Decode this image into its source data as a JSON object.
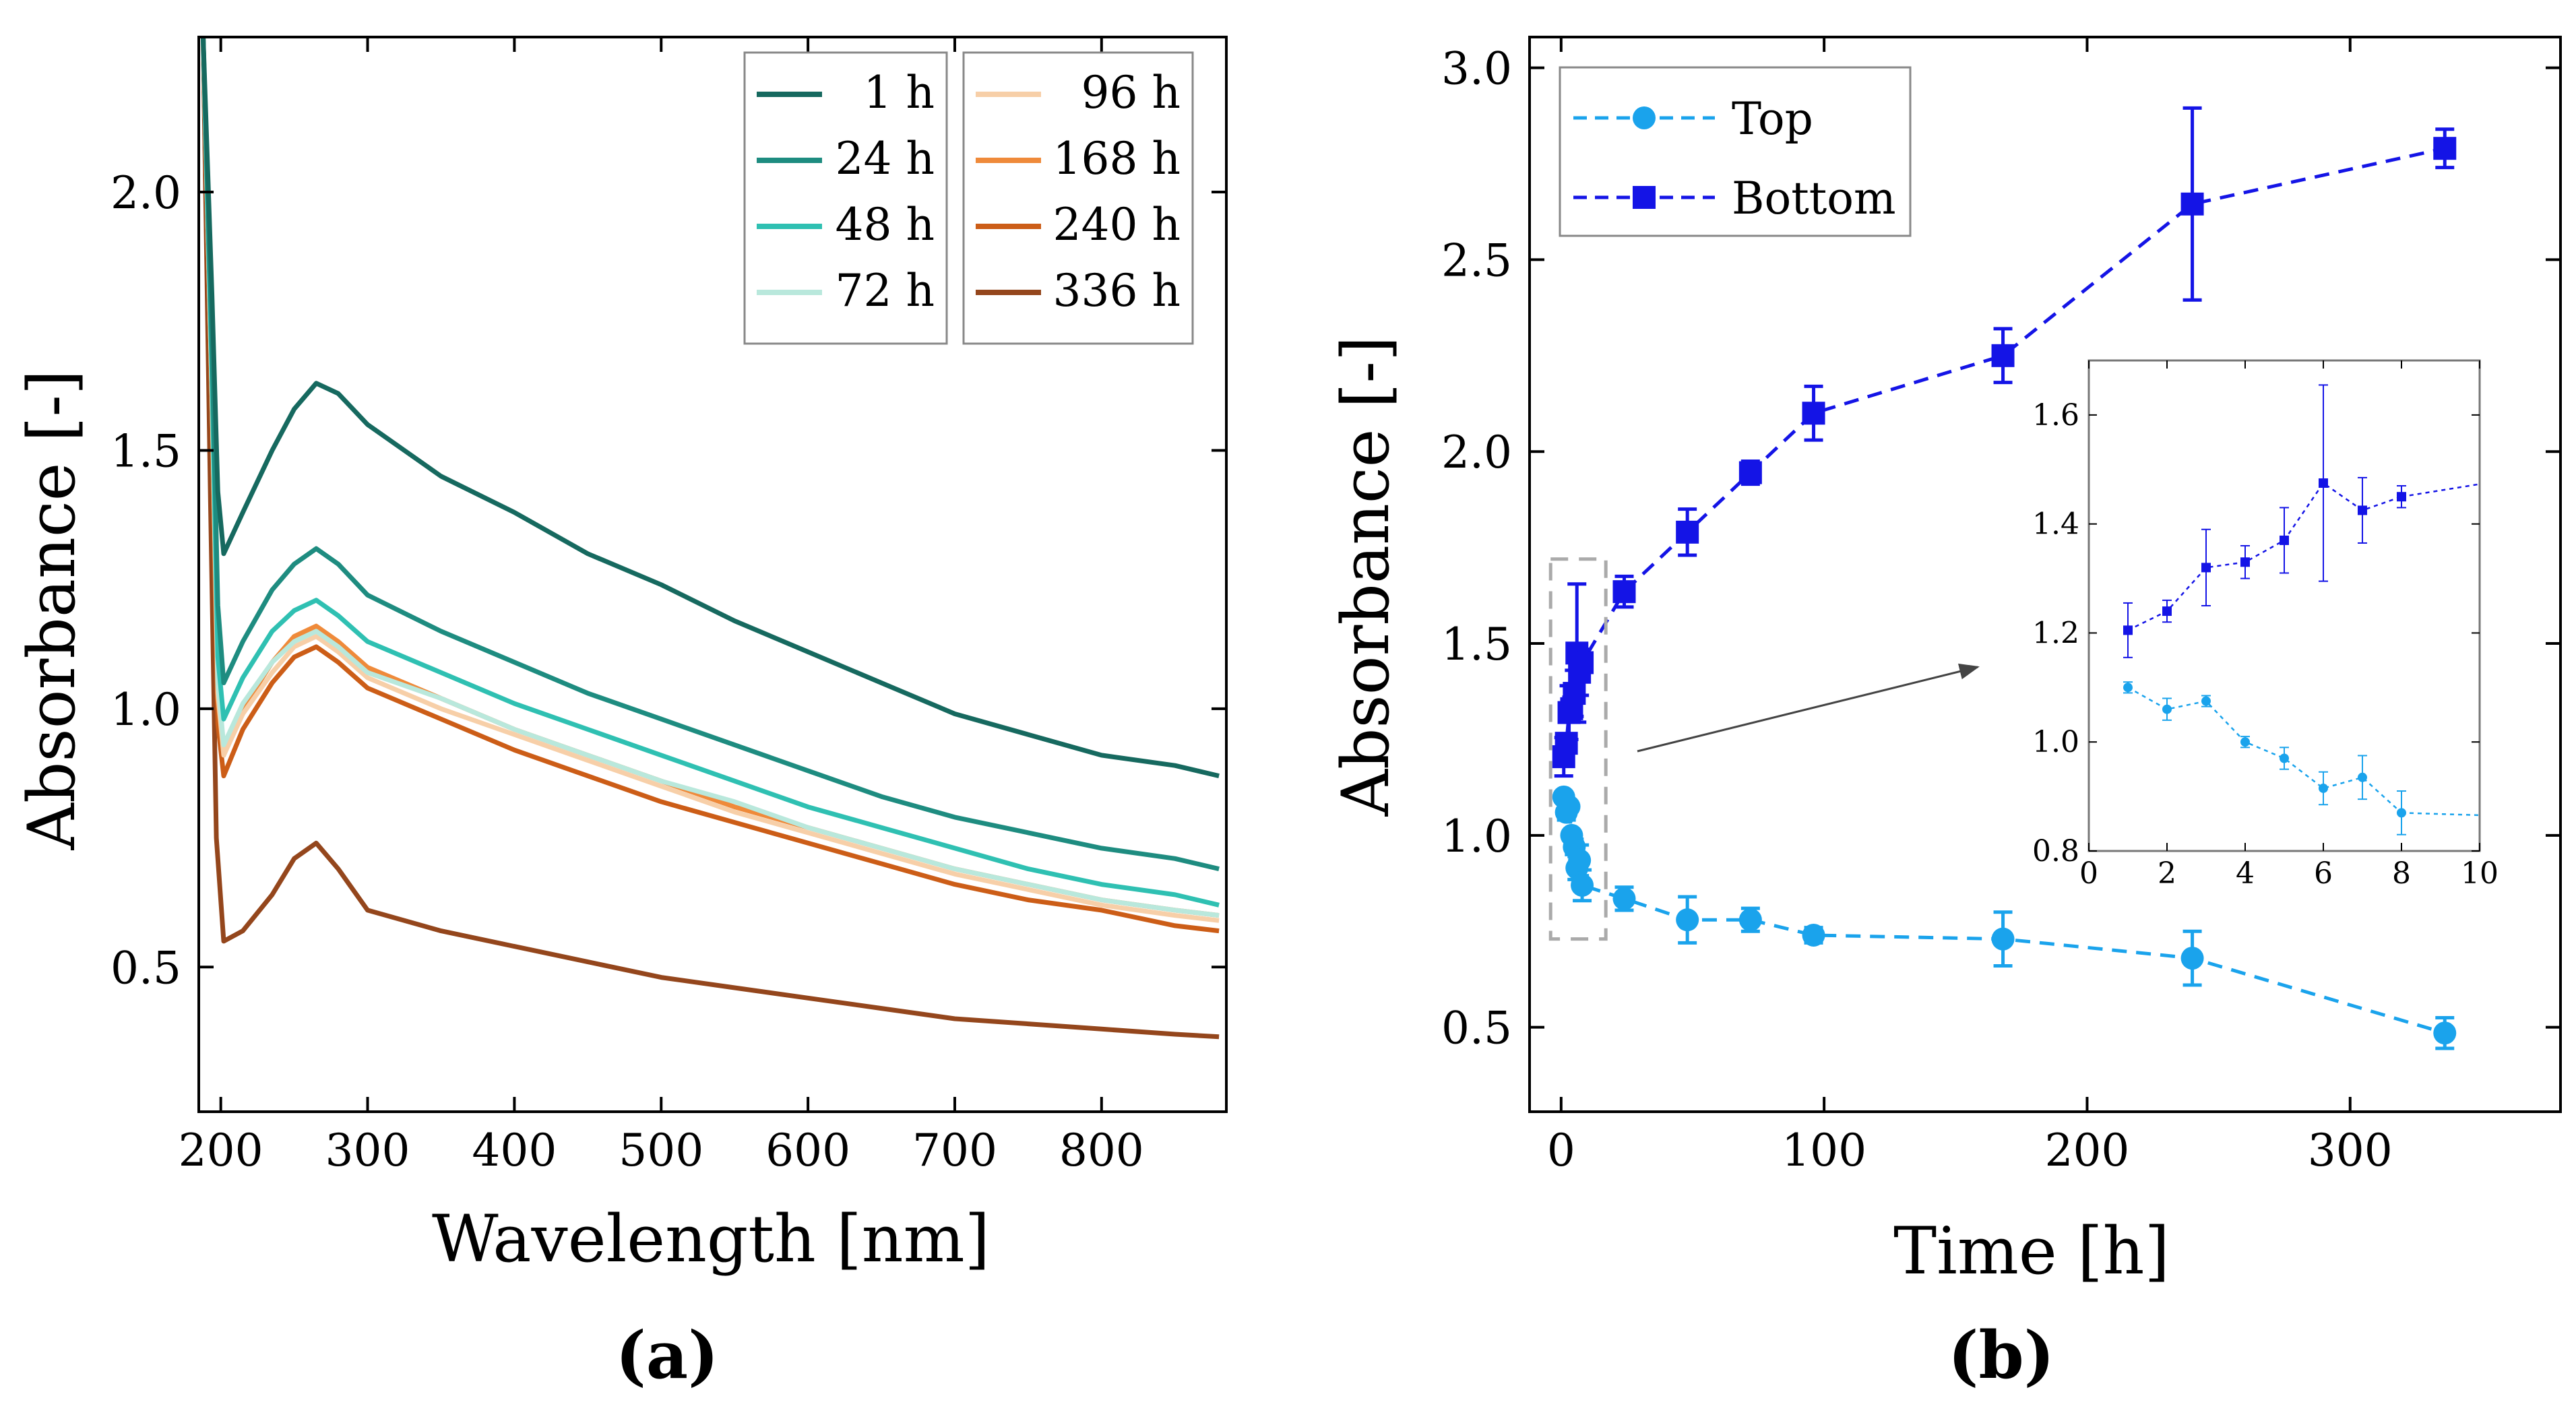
{
  "chart_data": [
    {
      "panel": "(a)",
      "type": "line",
      "xlabel": "Wavelength [nm]",
      "ylabel": "Absorbance [-]",
      "xlim": [
        185,
        885
      ],
      "ylim": [
        0.22,
        2.3
      ],
      "xticks": [
        200,
        300,
        400,
        500,
        600,
        700,
        800
      ],
      "yticks": [
        0.5,
        1.0,
        1.5,
        2.0
      ],
      "ytick_labels": [
        "0.5",
        "1.0",
        "1.5",
        "2.0"
      ],
      "legend_position": "top-right",
      "series": [
        {
          "name": "1 h",
          "color": "#16695f",
          "values": [
            [
              188,
              2.3
            ],
            [
              194,
              1.8
            ],
            [
              198,
              1.42
            ],
            [
              202,
              1.3
            ],
            [
              215,
              1.38
            ],
            [
              235,
              1.5
            ],
            [
              250,
              1.58
            ],
            [
              265,
              1.63
            ],
            [
              280,
              1.61
            ],
            [
              300,
              1.55
            ],
            [
              350,
              1.45
            ],
            [
              400,
              1.38
            ],
            [
              450,
              1.3
            ],
            [
              500,
              1.24
            ],
            [
              550,
              1.17
            ],
            [
              600,
              1.11
            ],
            [
              650,
              1.05
            ],
            [
              700,
              0.99
            ],
            [
              750,
              0.95
            ],
            [
              800,
              0.91
            ],
            [
              850,
              0.89
            ],
            [
              880,
              0.87
            ]
          ]
        },
        {
          "name": "24 h",
          "color": "#1e8c80",
          "values": [
            [
              188,
              2.3
            ],
            [
              194,
              1.7
            ],
            [
              198,
              1.2
            ],
            [
              202,
              1.05
            ],
            [
              215,
              1.13
            ],
            [
              235,
              1.23
            ],
            [
              250,
              1.28
            ],
            [
              265,
              1.31
            ],
            [
              280,
              1.28
            ],
            [
              300,
              1.22
            ],
            [
              350,
              1.15
            ],
            [
              400,
              1.09
            ],
            [
              450,
              1.03
            ],
            [
              500,
              0.98
            ],
            [
              550,
              0.93
            ],
            [
              600,
              0.88
            ],
            [
              650,
              0.83
            ],
            [
              700,
              0.79
            ],
            [
              750,
              0.76
            ],
            [
              800,
              0.73
            ],
            [
              850,
              0.71
            ],
            [
              880,
              0.69
            ]
          ]
        },
        {
          "name": "48 h",
          "color": "#2fc0b2",
          "values": [
            [
              188,
              2.3
            ],
            [
              194,
              1.65
            ],
            [
              198,
              1.1
            ],
            [
              202,
              0.98
            ],
            [
              215,
              1.06
            ],
            [
              235,
              1.15
            ],
            [
              250,
              1.19
            ],
            [
              265,
              1.21
            ],
            [
              280,
              1.18
            ],
            [
              300,
              1.13
            ],
            [
              350,
              1.07
            ],
            [
              400,
              1.01
            ],
            [
              450,
              0.96
            ],
            [
              500,
              0.91
            ],
            [
              550,
              0.86
            ],
            [
              600,
              0.81
            ],
            [
              650,
              0.77
            ],
            [
              700,
              0.73
            ],
            [
              750,
              0.69
            ],
            [
              800,
              0.66
            ],
            [
              850,
              0.64
            ],
            [
              880,
              0.62
            ]
          ]
        },
        {
          "name": "72 h",
          "color": "#b9e8dc",
          "values": [
            [
              188,
              2.3
            ],
            [
              194,
              1.6
            ],
            [
              198,
              1.05
            ],
            [
              202,
              0.93
            ],
            [
              215,
              1.01
            ],
            [
              235,
              1.09
            ],
            [
              250,
              1.13
            ],
            [
              265,
              1.15
            ],
            [
              280,
              1.12
            ],
            [
              300,
              1.07
            ],
            [
              350,
              1.02
            ],
            [
              400,
              0.96
            ],
            [
              450,
              0.91
            ],
            [
              500,
              0.86
            ],
            [
              550,
              0.82
            ],
            [
              600,
              0.77
            ],
            [
              650,
              0.73
            ],
            [
              700,
              0.69
            ],
            [
              750,
              0.66
            ],
            [
              800,
              0.63
            ],
            [
              850,
              0.61
            ],
            [
              880,
              0.6
            ]
          ]
        },
        {
          "name": "96 h",
          "color": "#f7cfa8",
          "values": [
            [
              188,
              2.3
            ],
            [
              194,
              1.6
            ],
            [
              198,
              1.03
            ],
            [
              202,
              0.91
            ],
            [
              215,
              0.99
            ],
            [
              235,
              1.07
            ],
            [
              250,
              1.12
            ],
            [
              265,
              1.14
            ],
            [
              280,
              1.11
            ],
            [
              300,
              1.06
            ],
            [
              350,
              1.0
            ],
            [
              400,
              0.95
            ],
            [
              450,
              0.9
            ],
            [
              500,
              0.85
            ],
            [
              550,
              0.8
            ],
            [
              600,
              0.76
            ],
            [
              650,
              0.72
            ],
            [
              700,
              0.68
            ],
            [
              750,
              0.65
            ],
            [
              800,
              0.62
            ],
            [
              850,
              0.6
            ],
            [
              880,
              0.59
            ]
          ]
        },
        {
          "name": "168 h",
          "color": "#ef8a3a",
          "values": [
            [
              188,
              2.3
            ],
            [
              194,
              1.6
            ],
            [
              198,
              1.02
            ],
            [
              202,
              0.91
            ],
            [
              215,
              1.0
            ],
            [
              235,
              1.09
            ],
            [
              250,
              1.14
            ],
            [
              265,
              1.16
            ],
            [
              280,
              1.13
            ],
            [
              300,
              1.08
            ],
            [
              350,
              1.02
            ],
            [
              400,
              0.96
            ],
            [
              450,
              0.91
            ],
            [
              500,
              0.86
            ],
            [
              550,
              0.81
            ],
            [
              600,
              0.77
            ],
            [
              650,
              0.73
            ],
            [
              700,
              0.69
            ],
            [
              750,
              0.66
            ],
            [
              800,
              0.63
            ],
            [
              850,
              0.61
            ],
            [
              880,
              0.6
            ]
          ]
        },
        {
          "name": "240 h",
          "color": "#cc5d17",
          "values": [
            [
              188,
              2.3
            ],
            [
              194,
              1.55
            ],
            [
              198,
              0.97
            ],
            [
              202,
              0.87
            ],
            [
              215,
              0.96
            ],
            [
              235,
              1.05
            ],
            [
              250,
              1.1
            ],
            [
              265,
              1.12
            ],
            [
              280,
              1.09
            ],
            [
              300,
              1.04
            ],
            [
              350,
              0.98
            ],
            [
              400,
              0.92
            ],
            [
              450,
              0.87
            ],
            [
              500,
              0.82
            ],
            [
              550,
              0.78
            ],
            [
              600,
              0.74
            ],
            [
              650,
              0.7
            ],
            [
              700,
              0.66
            ],
            [
              750,
              0.63
            ],
            [
              800,
              0.61
            ],
            [
              850,
              0.58
            ],
            [
              880,
              0.57
            ]
          ]
        },
        {
          "name": "336 h",
          "color": "#94461c",
          "values": [
            [
              188,
              2.3
            ],
            [
              193,
              1.4
            ],
            [
              197,
              0.75
            ],
            [
              202,
              0.55
            ],
            [
              215,
              0.57
            ],
            [
              235,
              0.64
            ],
            [
              250,
              0.71
            ],
            [
              265,
              0.74
            ],
            [
              280,
              0.69
            ],
            [
              300,
              0.61
            ],
            [
              350,
              0.57
            ],
            [
              400,
              0.54
            ],
            [
              450,
              0.51
            ],
            [
              500,
              0.48
            ],
            [
              550,
              0.46
            ],
            [
              600,
              0.44
            ],
            [
              650,
              0.42
            ],
            [
              700,
              0.4
            ],
            [
              750,
              0.39
            ],
            [
              800,
              0.38
            ],
            [
              850,
              0.37
            ],
            [
              880,
              0.365
            ]
          ]
        }
      ]
    },
    {
      "panel": "(b)",
      "type": "scatter",
      "xlabel": "Time [h]",
      "ylabel": "Absorbance [-]",
      "xlim": [
        -12,
        380
      ],
      "ylim": [
        0.28,
        3.08
      ],
      "xticks": [
        0,
        100,
        200,
        300
      ],
      "yticks": [
        0.5,
        1.0,
        1.5,
        2.0,
        2.5,
        3.0
      ],
      "ytick_labels": [
        "0.5",
        "1.0",
        "1.5",
        "2.0",
        "2.5",
        "3.0"
      ],
      "legend_position": "top-left",
      "series": [
        {
          "name": "Top",
          "color": "#1aa3ec",
          "marker": "circle",
          "x": [
            1,
            2,
            3,
            4,
            5,
            6,
            7,
            8,
            24,
            48,
            72,
            96,
            168,
            240,
            336
          ],
          "values": [
            1.1,
            1.06,
            1.075,
            1.0,
            0.97,
            0.915,
            0.935,
            0.87,
            0.835,
            0.78,
            0.78,
            0.74,
            0.73,
            0.68,
            0.485
          ],
          "errors": [
            0.01,
            0.02,
            0.01,
            0.01,
            0.02,
            0.03,
            0.04,
            0.04,
            0.03,
            0.06,
            0.03,
            0.02,
            0.07,
            0.07,
            0.04
          ]
        },
        {
          "name": "Bottom",
          "color": "#1414e6",
          "marker": "square",
          "x": [
            1,
            2,
            3,
            4,
            5,
            6,
            7,
            8,
            24,
            48,
            72,
            96,
            168,
            240,
            336
          ],
          "values": [
            1.205,
            1.24,
            1.32,
            1.33,
            1.37,
            1.475,
            1.425,
            1.45,
            1.635,
            1.79,
            1.945,
            2.1,
            2.25,
            2.645,
            2.79
          ],
          "errors": [
            0.05,
            0.02,
            0.07,
            0.03,
            0.06,
            0.18,
            0.06,
            0.02,
            0.04,
            0.06,
            0.03,
            0.07,
            0.07,
            0.25,
            0.05
          ]
        }
      ],
      "inset": {
        "xlim": [
          0,
          10
        ],
        "ylim": [
          0.8,
          1.7
        ],
        "xticks": [
          0,
          2,
          4,
          6,
          8,
          10
        ],
        "yticks": [
          0.8,
          1.0,
          1.2,
          1.4,
          1.6
        ],
        "ytick_labels": [
          "0.8",
          "1.0",
          "1.2",
          "1.4",
          "1.6"
        ],
        "series_x_max": 8
      }
    }
  ],
  "panel_labels": {
    "a": "(a)",
    "b": "(b)"
  }
}
